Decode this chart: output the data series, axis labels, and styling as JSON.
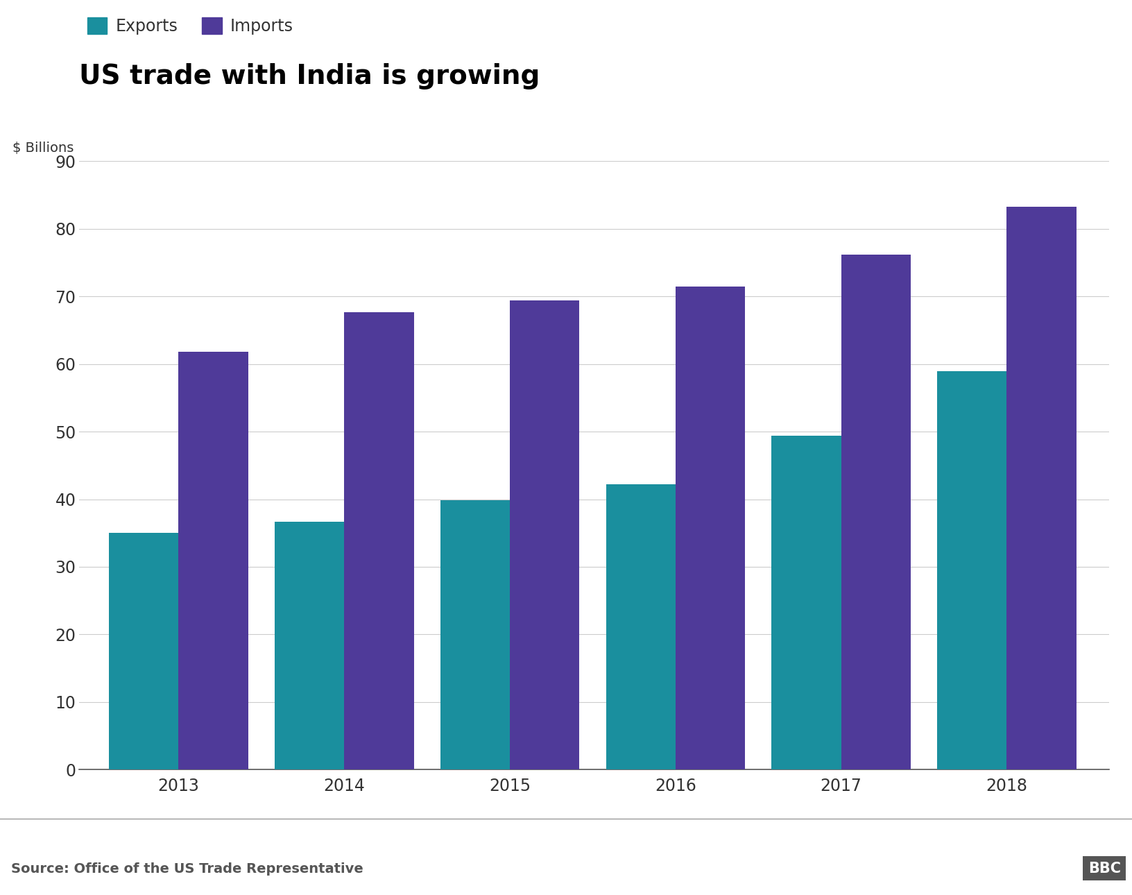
{
  "title": "US trade with India is growing",
  "ylabel": "$ Billions",
  "years": [
    "2013",
    "2014",
    "2015",
    "2016",
    "2017",
    "2018"
  ],
  "exports": [
    35.0,
    36.7,
    39.9,
    42.2,
    49.4,
    58.9
  ],
  "imports": [
    61.8,
    67.7,
    69.4,
    71.5,
    76.2,
    83.2
  ],
  "exports_color": "#1a8f9e",
  "imports_color": "#4f3a99",
  "ylim": [
    0,
    90
  ],
  "yticks": [
    0,
    10,
    20,
    30,
    40,
    50,
    60,
    70,
    80,
    90
  ],
  "legend_exports": "Exports",
  "legend_imports": "Imports",
  "source": "Source: Office of the US Trade Representative",
  "bbc_label": "BBC",
  "background_color": "#ffffff",
  "bar_width": 0.42,
  "title_fontsize": 28,
  "legend_fontsize": 17,
  "axis_label_fontsize": 14,
  "tick_fontsize": 17,
  "source_fontsize": 14
}
